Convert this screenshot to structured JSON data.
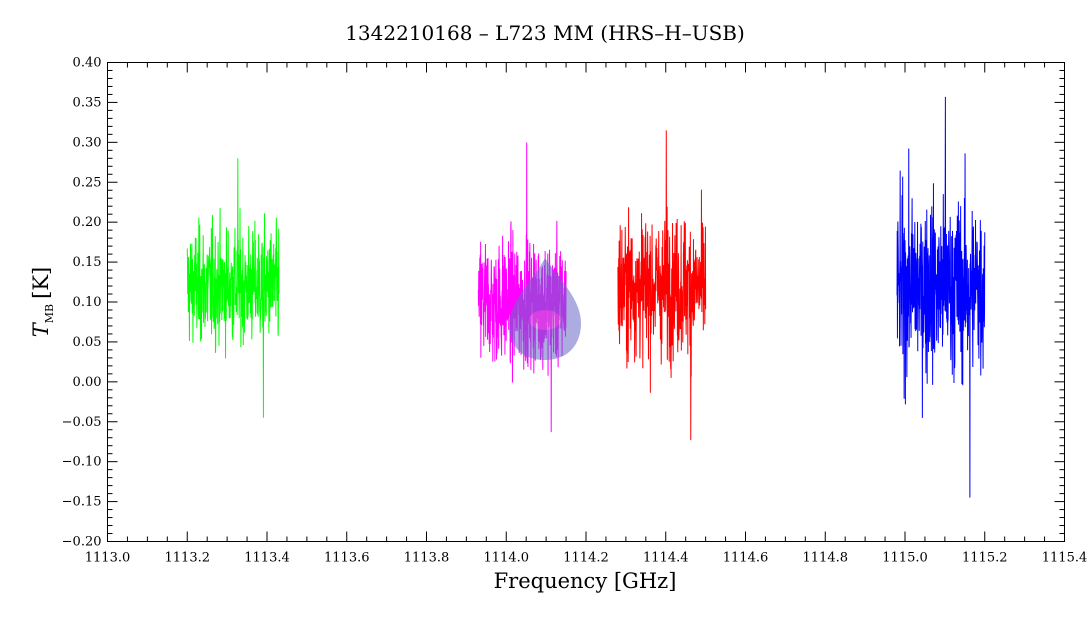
{
  "chart_data": {
    "type": "line",
    "title": "1342210168 – L723 MM (HRS–H–USB)",
    "xlabel": "Frequency [GHz]",
    "ylabel": {
      "main": "T",
      "sub": "MB",
      "unit": "[K]"
    },
    "xlim": [
      1113.0,
      1115.4
    ],
    "ylim": [
      -0.2,
      0.4
    ],
    "xticks": [
      "1113.0",
      "1113.2",
      "1113.4",
      "1113.6",
      "1113.8",
      "1114.0",
      "1114.2",
      "1114.4",
      "1114.6",
      "1114.8",
      "1115.0",
      "1115.2",
      "1115.4"
    ],
    "yticks": [
      "−0.20",
      "−0.15",
      "−0.10",
      "−0.05",
      "0.00",
      "0.05",
      "0.10",
      "0.15",
      "0.20",
      "0.25",
      "0.30",
      "0.35",
      "0.40"
    ],
    "grid": false,
    "series": [
      {
        "color": "#00ff00",
        "x_range": [
          1113.2,
          1113.43
        ],
        "mean": 0.12,
        "approx_min": -0.045,
        "approx_max": 0.28
      },
      {
        "color": "#ff00ff",
        "x_range": [
          1113.93,
          1114.15
        ],
        "mean": 0.1,
        "approx_min": -0.063,
        "approx_max": 0.3
      },
      {
        "color": "#ff0000",
        "x_range": [
          1114.28,
          1114.5
        ],
        "mean": 0.12,
        "approx_min": -0.073,
        "approx_max": 0.315
      },
      {
        "color": "#0000ff",
        "x_range": [
          1114.98,
          1115.2
        ],
        "mean": 0.12,
        "approx_min": -0.145,
        "approx_max": 0.357
      }
    ]
  }
}
